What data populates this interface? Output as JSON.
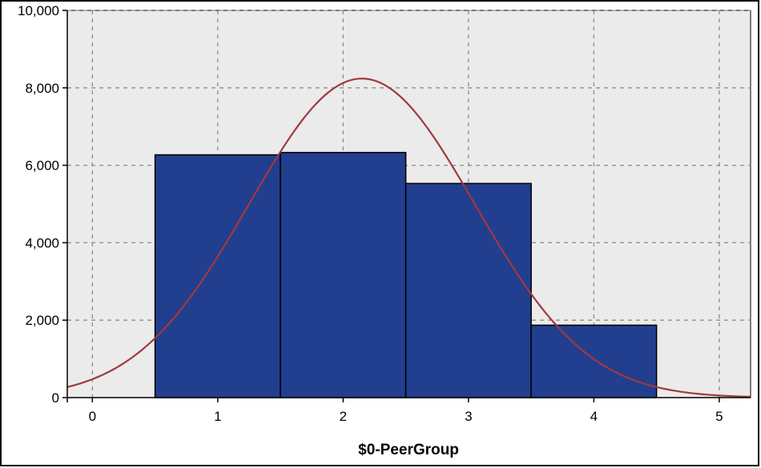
{
  "chart_data": {
    "type": "bar",
    "title": "",
    "xlabel": "$0-PeerGroup",
    "ylabel": "",
    "xlim": [
      -0.2,
      5.25
    ],
    "ylim": [
      0,
      10000
    ],
    "x_ticks": [
      0,
      1,
      2,
      3,
      4,
      5
    ],
    "x_tick_labels": [
      "0",
      "1",
      "2",
      "3",
      "4",
      "5"
    ],
    "y_ticks": [
      0,
      2000,
      4000,
      6000,
      8000,
      10000
    ],
    "y_tick_labels": [
      "0",
      "2,000",
      "4,000",
      "6,000",
      "8,000",
      "10,000"
    ],
    "grid": true,
    "bars": [
      {
        "x": 1,
        "value": 6270
      },
      {
        "x": 2,
        "value": 6330
      },
      {
        "x": 3,
        "value": 5530
      },
      {
        "x": 4,
        "value": 1870
      }
    ],
    "normal_curve": {
      "mean": 2.15,
      "sd": 0.9,
      "peak": 8240
    },
    "colors": {
      "bar_fill": "#223e8e",
      "bar_stroke": "#000000",
      "curve": "#a0393f",
      "plot_bg": "#ebebeb",
      "grid": "#8c8c8c"
    }
  }
}
